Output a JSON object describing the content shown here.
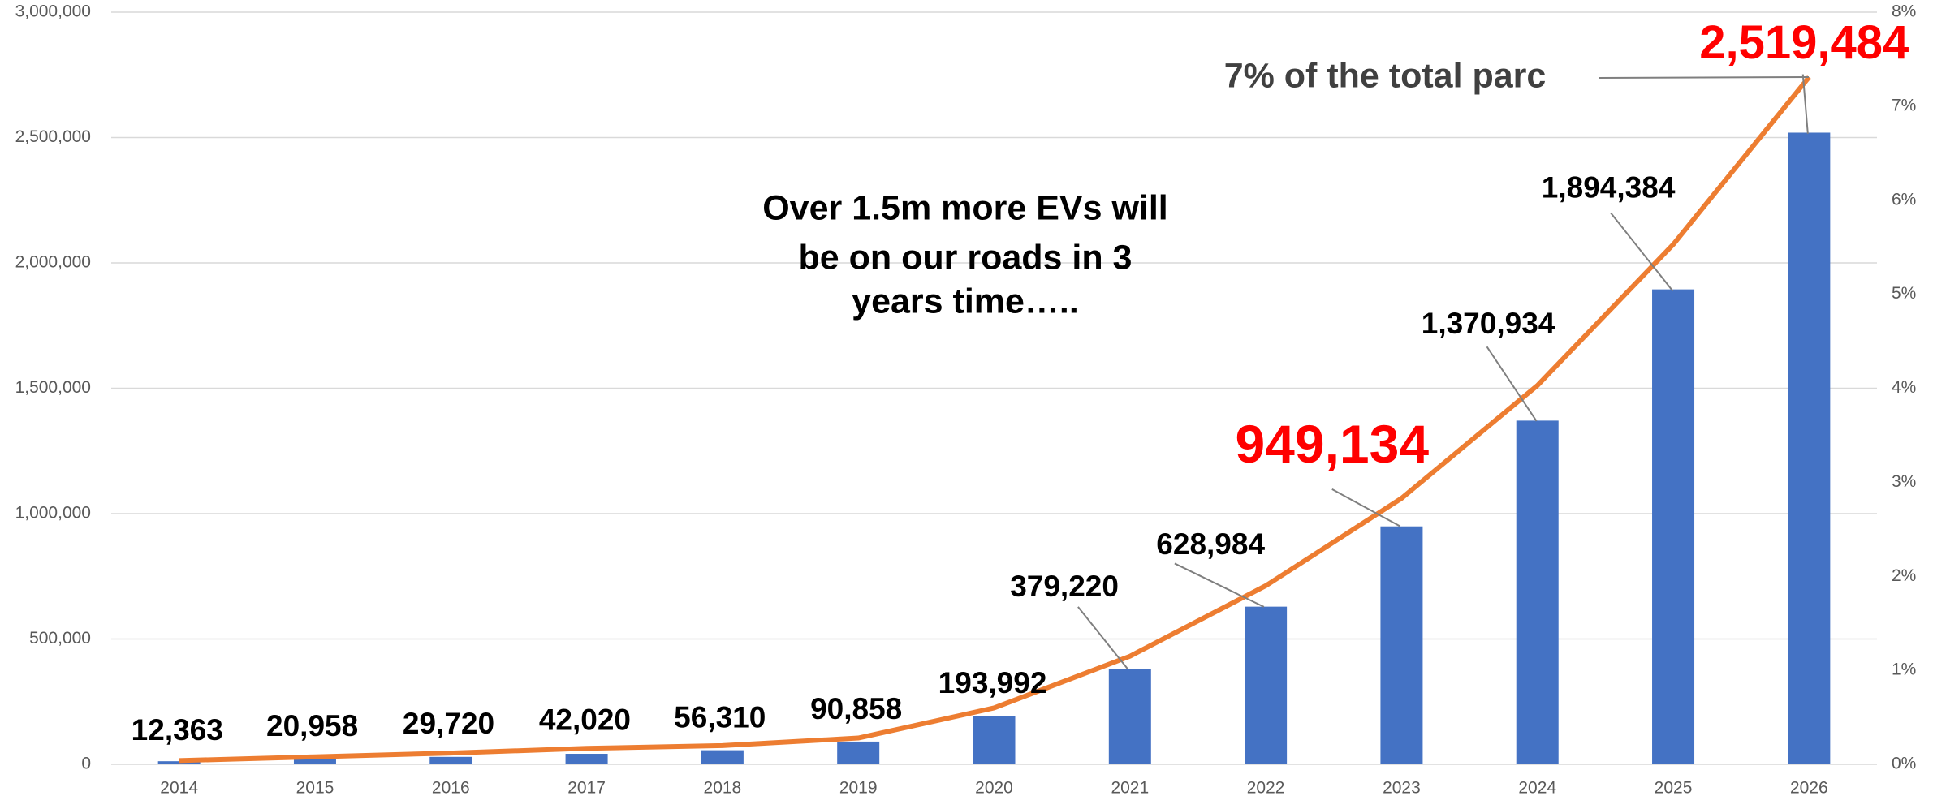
{
  "chart_data": {
    "type": "bar",
    "categories": [
      "2014",
      "2015",
      "2016",
      "2017",
      "2018",
      "2019",
      "2020",
      "2021",
      "2022",
      "2023",
      "2024",
      "2025",
      "2026"
    ],
    "series": [
      {
        "type": "bar",
        "color": "#4472c4",
        "values": [
          12363,
          20958,
          29720,
          42020,
          56310,
          90858,
          193992,
          379220,
          628984,
          949134,
          1370934,
          1894384,
          2519484
        ],
        "value_labels": [
          "12,363",
          "20,958",
          "29,720",
          "42,020",
          "56,310",
          "90,858",
          "193,992",
          "379,220",
          "628,984",
          "949,134",
          "1,370,934",
          "1,894,384",
          "2,519,484"
        ]
      },
      {
        "type": "line",
        "color": "#ed7d31",
        "axis": "y2",
        "values": [
          0.04,
          0.08,
          0.12,
          0.17,
          0.2,
          0.28,
          0.6,
          1.15,
          1.9,
          2.83,
          4.03,
          5.53,
          7.31
        ]
      }
    ],
    "highlight_color": "#ff0000",
    "ylim": [
      0,
      3000000
    ],
    "yticks": [
      0,
      {
        "value": 500000,
        "label": "500,000"
      },
      {
        "value": 1000000,
        "label": "1,000,000"
      },
      {
        "value": 1500000,
        "label": "1,500,000"
      },
      {
        "value": 2000000,
        "label": "2,000,000"
      },
      {
        "value": 2500000,
        "label": "2,500,000"
      },
      {
        "value": 3000000,
        "label": "3,000,000"
      }
    ],
    "y2lim": [
      0,
      8
    ],
    "y2ticks": [
      {
        "value": 0,
        "label": "0%"
      },
      {
        "value": 1,
        "label": "1%"
      },
      {
        "value": 2,
        "label": "2%"
      },
      {
        "value": 3,
        "label": "3%"
      },
      {
        "value": 4,
        "label": "4%"
      },
      {
        "value": 5,
        "label": "5%"
      },
      {
        "value": 6,
        "label": "6%"
      },
      {
        "value": 7,
        "label": "7%"
      },
      {
        "value": 8,
        "label": "8%"
      }
    ],
    "grid": true,
    "annotations": [
      {
        "text": "7% of the total parc"
      },
      {
        "text": [
          "Over 1.5m more EVs will",
          "be on our roads in 3",
          "years time….."
        ]
      }
    ]
  }
}
